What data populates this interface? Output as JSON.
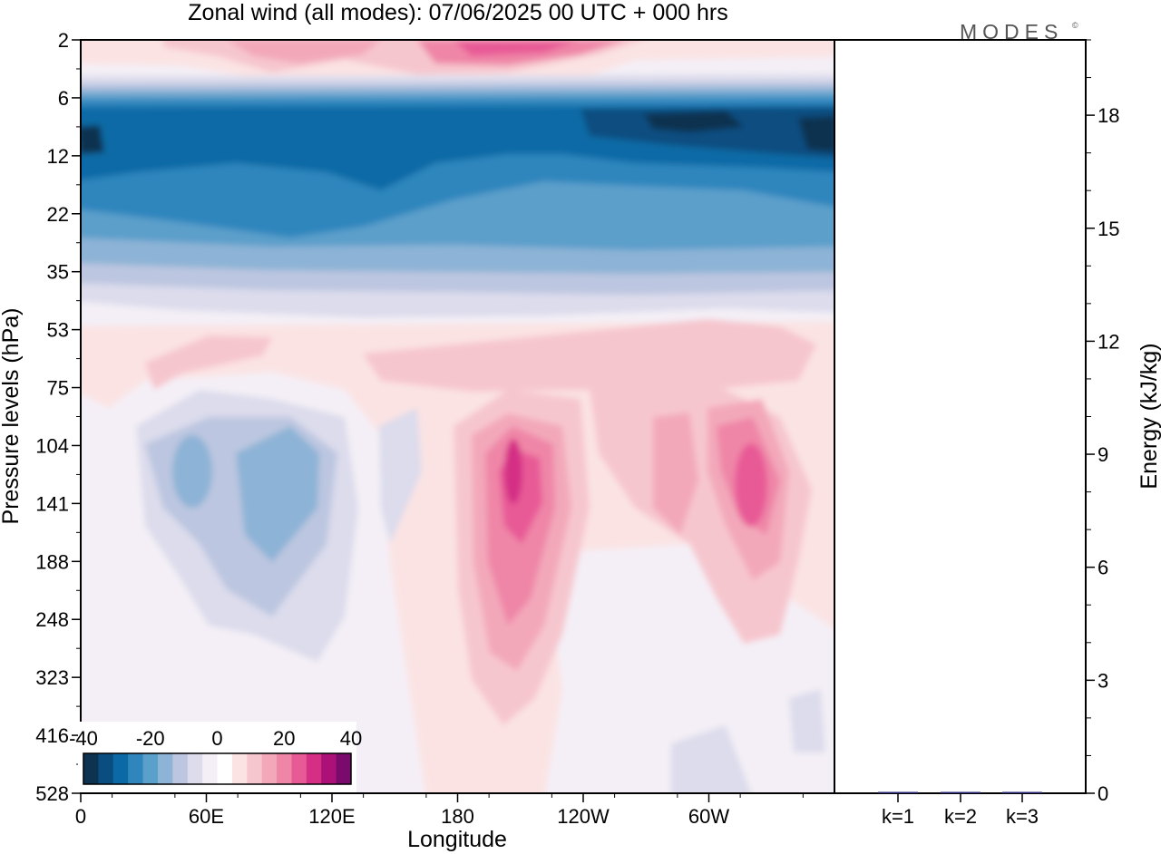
{
  "title": "Zonal wind (all modes):  07/06/2025  00 UTC  + 000 hrs",
  "logo": "MODES",
  "logo_mark": "©",
  "colors": {
    "blues": [
      "#0d3350",
      "#0a4e80",
      "#0b6aa6",
      "#2f86bd",
      "#5b9fcb",
      "#8db3d6",
      "#bcc6e0",
      "#dcdcec"
    ],
    "reds": [
      "#fbe3e3",
      "#f6c6ce",
      "#f3a8ba",
      "#ef86a7",
      "#e85a96",
      "#d42f85",
      "#ac1178",
      "#7b0a6d",
      "#4c0a62"
    ],
    "neutral": "#f4eff6"
  },
  "chart_data": [
    {
      "type": "heatmap",
      "title": "Zonal wind (all modes):  07/06/2025  00 UTC  + 000 hrs",
      "xlabel": "Longitude",
      "ylabel": "Pressure levels (hPa)",
      "x_ticks": [
        "0",
        "60E",
        "120E",
        "180",
        "120W",
        "60W"
      ],
      "y_ticks": [
        "2",
        "6",
        "12",
        "22",
        "35",
        "53",
        "75",
        "104",
        "141",
        "188",
        "248",
        "323",
        "416",
        "528"
      ],
      "colorbar": {
        "ticks": [
          "-40",
          "-20",
          "0",
          "20",
          "40"
        ],
        "range": [
          -40,
          40
        ]
      },
      "regions": [
        {
          "level": "2",
          "sign": "positive",
          "value": 20
        },
        {
          "level": "6-35",
          "sign": "negative",
          "value": -30
        },
        {
          "level": "8-16",
          "sign": "negative",
          "value": -38
        },
        {
          "level": "53-416",
          "sign": "positive",
          "value": 5
        },
        {
          "level": "104-248",
          "lon": "30E-130E",
          "sign": "negative",
          "value": -12
        },
        {
          "level": "104-416",
          "lon": "160W-135W",
          "sign": "positive",
          "value": 28
        },
        {
          "level": "104-248",
          "lon": "80W-20W",
          "sign": "positive",
          "value": 20
        }
      ]
    },
    {
      "type": "bar",
      "ylabel": "Energy (kJ/kg)",
      "categories": [
        "k=1",
        "k=2",
        "k=3"
      ],
      "values": [
        0.02,
        0.01,
        0.01
      ],
      "ylim": [
        0,
        20
      ],
      "y_ticks": [
        "0",
        "3",
        "6",
        "9",
        "12",
        "15",
        "18"
      ]
    }
  ]
}
